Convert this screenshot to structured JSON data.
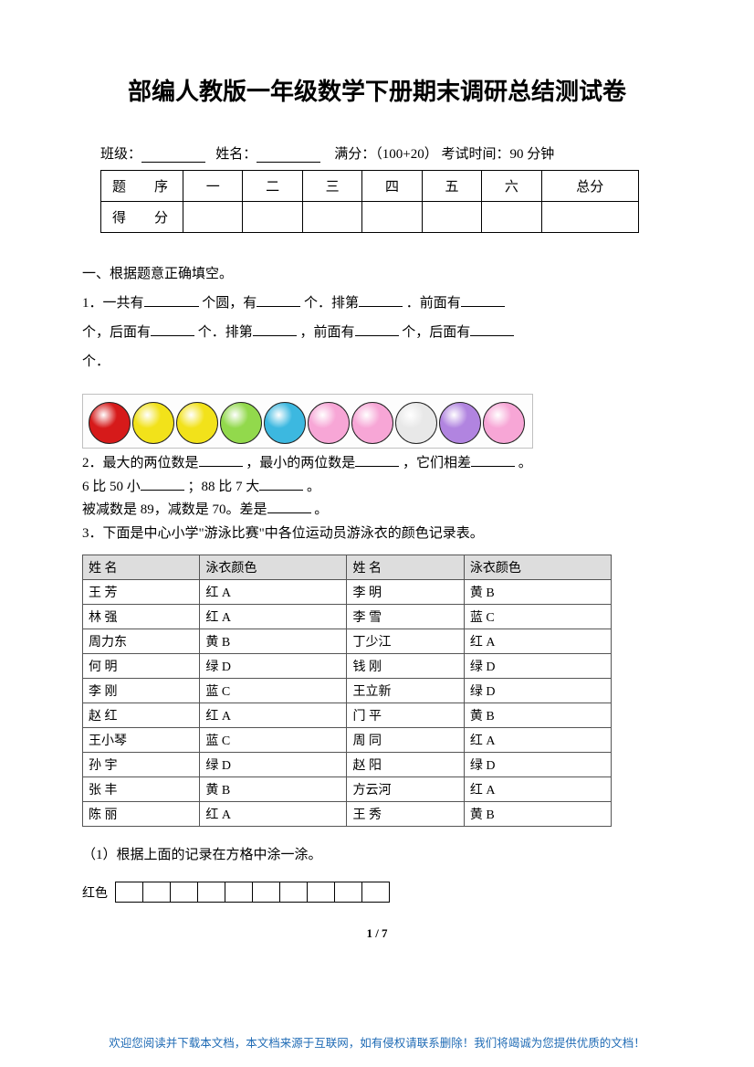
{
  "title": "部编人教版一年级数学下册期末调研总结测试卷",
  "info": {
    "class_label": "班级：",
    "name_label": "姓名：",
    "full_label": "满分：",
    "full_value": "（100+20）",
    "time_label": "考试时间：",
    "time_value": "90 分钟"
  },
  "score_table": {
    "row1": [
      "题　序",
      "一",
      "二",
      "三",
      "四",
      "五",
      "六",
      "总分"
    ],
    "row2_label": "得　分"
  },
  "section1_heading": "一、根据题意正确填空。",
  "q1": {
    "p1a": "1．一共有",
    "p1b": "个圆，有",
    "p1c": "个．排第",
    "p1d": "．前面有",
    "p2a": "个，后面有",
    "p2b": "个．排第",
    "p2c": "，前面有",
    "p2d": "个，后面有",
    "p3": "个．"
  },
  "circles": {
    "colors": [
      "#d61a1a",
      "#f2e21a",
      "#f2e21a",
      "#92d94c",
      "#3cb8e0",
      "#f7a6d6",
      "#f7a6d6",
      "#e8e8e8",
      "#b184e0",
      "#f7a6d6"
    ]
  },
  "q2": {
    "l1a": "2．最大的两位数是",
    "l1b": "，最小的两位数是",
    "l1c": "，它们相差",
    "l1d": "。",
    "l2a": "6 比 50 小",
    "l2b": "；88 比 7 大",
    "l2c": "。",
    "l3a": "被减数是 89，减数是 70。差是",
    "l3b": "。"
  },
  "q3_intro": "3．下面是中心小学\"游泳比赛\"中各位运动员游泳衣的颜色记录表。",
  "swim_headers": [
    "姓 名",
    "泳衣颜色",
    "姓 名",
    "泳衣颜色"
  ],
  "swim_rows": [
    [
      "王 芳",
      "红 A",
      "李 明",
      "黄 B"
    ],
    [
      "林 强",
      "红 A",
      "李 雪",
      "蓝 C"
    ],
    [
      "周力东",
      "黄 B",
      "丁少江",
      "红 A"
    ],
    [
      "何 明",
      "绿 D",
      "钱 刚",
      "绿 D"
    ],
    [
      "李 刚",
      "蓝 C",
      "王立新",
      "绿 D"
    ],
    [
      "赵 红",
      "红 A",
      "门 平",
      "黄 B"
    ],
    [
      "王小琴",
      "蓝 C",
      "周 同",
      "红 A"
    ],
    [
      "孙 宇",
      "绿 D",
      "赵 阳",
      "绿 D"
    ],
    [
      "张 丰",
      "黄 B",
      "方云河",
      "红 A"
    ],
    [
      "陈 丽",
      "红 A",
      "王 秀",
      "黄 B"
    ]
  ],
  "q3_sub1": "（1）根据上面的记录在方格中涂一涂。",
  "grid_label": "红色",
  "grid_count": 10,
  "pagenum": "1 / 7",
  "footer": "欢迎您阅读并下载本文档，本文档来源于互联网，如有侵权请联系删除！我们将竭诚为您提供优质的文档！"
}
